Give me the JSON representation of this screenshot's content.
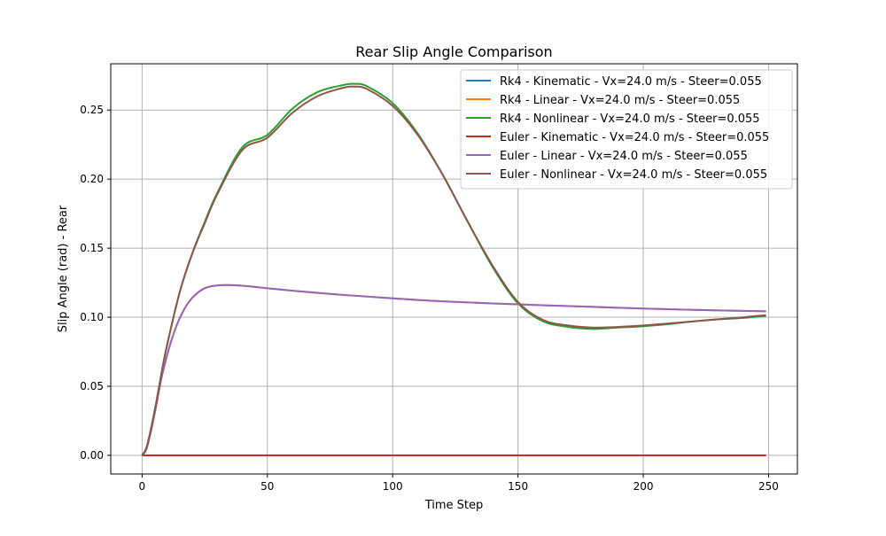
{
  "chart_data": {
    "type": "line",
    "title": "Rear Slip Angle Comparison",
    "xlabel": "Time Step",
    "ylabel": "Slip Angle (rad) - Rear",
    "xlim": [
      -12.5,
      261.5
    ],
    "ylim": [
      -0.0135,
      0.2835
    ],
    "xticks": [
      0,
      50,
      100,
      150,
      200,
      250
    ],
    "yticks": [
      0.0,
      0.05,
      0.1,
      0.15,
      0.2,
      0.25
    ],
    "xtick_labels": [
      "0",
      "50",
      "100",
      "150",
      "200",
      "250"
    ],
    "ytick_labels": [
      "0.00",
      "0.05",
      "0.10",
      "0.15",
      "0.20",
      "0.25"
    ],
    "grid": true,
    "legend_position": "top-right",
    "series": [
      {
        "name": "Rk4 - Kinematic - Vx=24.0 m/s - Steer=0.055",
        "color": "#1f77b4",
        "x": [
          0,
          249
        ],
        "y": [
          0.0,
          0.0
        ]
      },
      {
        "name": "Rk4 - Linear - Vx=24.0 m/s - Steer=0.055",
        "color": "#ff7f0e",
        "x": [
          0,
          2,
          5,
          8,
          12,
          16,
          20,
          25,
          30,
          35,
          40,
          50,
          60,
          80,
          100,
          120,
          150,
          180,
          200,
          230,
          249
        ],
        "y": [
          0.0,
          0.006,
          0.03,
          0.058,
          0.085,
          0.103,
          0.114,
          0.121,
          0.123,
          0.1233,
          0.1228,
          0.121,
          0.1192,
          0.1162,
          0.1137,
          0.1115,
          0.1093,
          0.1075,
          0.1063,
          0.1049,
          0.1043
        ]
      },
      {
        "name": "Rk4 - Nonlinear - Vx=24.0 m/s - Steer=0.055",
        "color": "#2ca02c",
        "x": [
          0,
          2,
          5,
          8,
          10,
          15,
          20,
          25,
          30,
          40,
          50,
          60,
          70,
          80,
          85,
          90,
          100,
          110,
          120,
          130,
          140,
          150,
          160,
          170,
          180,
          190,
          200,
          210,
          220,
          230,
          240,
          249
        ],
        "y": [
          0.0,
          0.007,
          0.032,
          0.062,
          0.08,
          0.118,
          0.146,
          0.169,
          0.19,
          0.223,
          0.232,
          0.251,
          0.263,
          0.268,
          0.269,
          0.267,
          0.255,
          0.233,
          0.203,
          0.169,
          0.136,
          0.11,
          0.097,
          0.093,
          0.0915,
          0.0925,
          0.0935,
          0.095,
          0.097,
          0.0985,
          0.0995,
          0.101
        ]
      },
      {
        "name": "Euler - Kinematic - Vx=24.0 m/s - Steer=0.055",
        "color": "#d62728",
        "x": [
          0,
          249
        ],
        "y": [
          0.0,
          0.0
        ]
      },
      {
        "name": "Euler - Linear - Vx=24.0 m/s - Steer=0.055",
        "color": "#9467bd",
        "x": [
          0,
          2,
          5,
          8,
          12,
          16,
          20,
          25,
          30,
          35,
          40,
          50,
          60,
          80,
          100,
          120,
          150,
          180,
          200,
          230,
          249
        ],
        "y": [
          0.0,
          0.006,
          0.03,
          0.058,
          0.085,
          0.103,
          0.114,
          0.121,
          0.123,
          0.1233,
          0.1228,
          0.121,
          0.1192,
          0.1162,
          0.1137,
          0.1115,
          0.1093,
          0.1075,
          0.1063,
          0.1049,
          0.1043
        ]
      },
      {
        "name": "Euler - Nonlinear - Vx=24.0 m/s - Steer=0.055",
        "color": "#8c564b",
        "x": [
          0,
          2,
          5,
          8,
          10,
          15,
          20,
          25,
          30,
          40,
          50,
          60,
          70,
          80,
          85,
          90,
          100,
          110,
          120,
          130,
          140,
          150,
          160,
          170,
          180,
          190,
          200,
          210,
          220,
          230,
          240,
          249
        ],
        "y": [
          0.0,
          0.007,
          0.032,
          0.062,
          0.08,
          0.118,
          0.146,
          0.168,
          0.189,
          0.221,
          0.23,
          0.248,
          0.26,
          0.266,
          0.267,
          0.265,
          0.253,
          0.232,
          0.203,
          0.169,
          0.137,
          0.111,
          0.098,
          0.094,
          0.0925,
          0.093,
          0.094,
          0.0955,
          0.097,
          0.0985,
          0.1,
          0.1015
        ]
      }
    ]
  }
}
